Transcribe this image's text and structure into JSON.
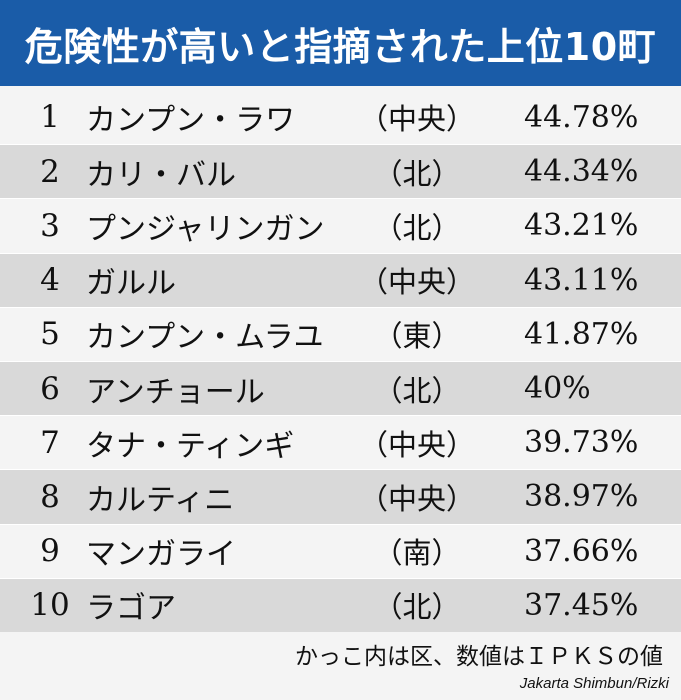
{
  "title": "危険性が高いと指摘された上位10町",
  "note": "かっこ内は区、数値はＩＰＫＳの値",
  "credit": "Jakarta Shimbun/Rizki",
  "colors": {
    "header": "#1a5ca8",
    "shaded_row": "#d9d9d9",
    "plain_row": "#f4f4f4"
  },
  "chart_data": {
    "type": "table",
    "title": "危険性が高いと指摘された上位10町",
    "columns": [
      "rank",
      "name",
      "district",
      "value"
    ],
    "rows": [
      {
        "rank": "1",
        "name": "カンプン・ラワ",
        "district": "（中央）",
        "value": "44.78%"
      },
      {
        "rank": "2",
        "name": "カリ・バル",
        "district": "（北）",
        "value": "44.34%"
      },
      {
        "rank": "3",
        "name": "プンジャリンガン",
        "district": "（北）",
        "value": "43.21%"
      },
      {
        "rank": "4",
        "name": "ガルル",
        "district": "（中央）",
        "value": "43.11%"
      },
      {
        "rank": "5",
        "name": "カンプン・ムラユ",
        "district": "（東）",
        "value": "41.87%"
      },
      {
        "rank": "6",
        "name": "アンチョール",
        "district": "（北）",
        "value": "40%"
      },
      {
        "rank": "7",
        "name": "タナ・ティンギ",
        "district": "（中央）",
        "value": "39.73%"
      },
      {
        "rank": "8",
        "name": "カルティニ",
        "district": "（中央）",
        "value": "38.97%"
      },
      {
        "rank": "9",
        "name": "マンガライ",
        "district": "（南）",
        "value": "37.66%"
      },
      {
        "rank": "10",
        "name": "ラゴア",
        "district": "（北）",
        "value": "37.45%"
      }
    ]
  }
}
